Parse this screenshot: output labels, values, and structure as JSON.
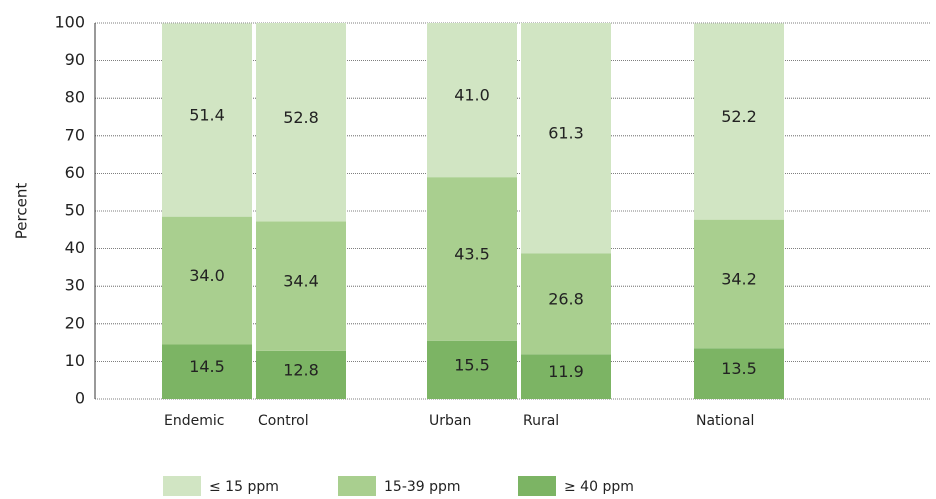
{
  "chart_data": {
    "type": "stacked_bar",
    "y_label": "Percent",
    "categories": [
      "Endemic",
      "Control",
      "Urban",
      "Rural",
      "National"
    ],
    "series": [
      {
        "name": "≤ 15 ppm",
        "color": "#d1e5c3",
        "values": [
          51.4,
          52.8,
          41.0,
          61.3,
          52.2
        ],
        "value_labels": [
          "51.4",
          "52.8",
          "41.0",
          "61.3",
          "52.2"
        ]
      },
      {
        "name": "15-39 ppm",
        "color": "#a9cf8f",
        "values": [
          34.0,
          34.4,
          43.5,
          26.8,
          34.2
        ],
        "value_labels": [
          "34.0",
          "34.4",
          "43.5",
          "26.8",
          "34.2"
        ]
      },
      {
        "name": "≥ 40 ppm",
        "color": "#7cb464",
        "values": [
          14.5,
          12.8,
          15.5,
          11.9,
          13.5
        ],
        "value_labels": [
          "14.5",
          "12.8",
          "15.5",
          "11.9",
          "13.5"
        ]
      }
    ],
    "ylim": [
      0,
      100
    ],
    "yticks": [
      0,
      10,
      20,
      30,
      40,
      50,
      60,
      70,
      80,
      90,
      100
    ],
    "grid": true
  }
}
